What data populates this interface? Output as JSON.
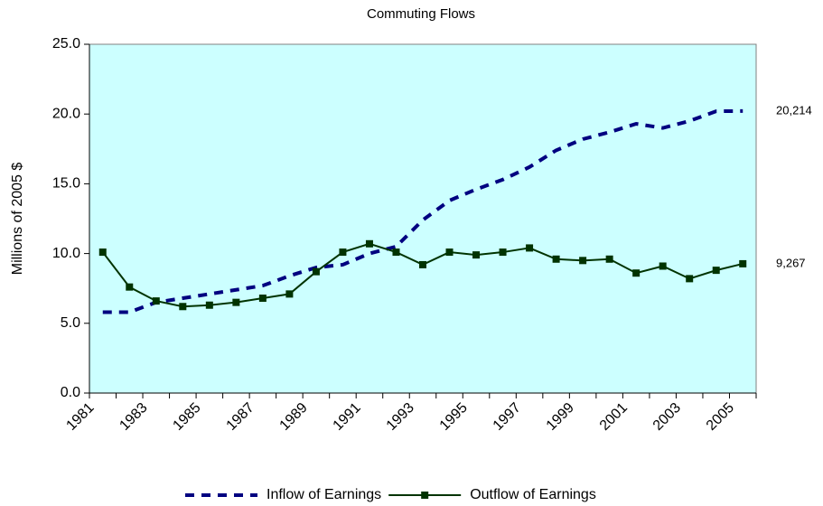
{
  "chart_data": {
    "type": "line",
    "title": "Commuting Flows",
    "ylabel": "Millions of 2005 $",
    "categories": [
      "1981",
      null,
      "1983",
      null,
      "1985",
      null,
      "1987",
      null,
      "1989",
      null,
      "1991",
      null,
      "1993",
      null,
      "1995",
      null,
      "1997",
      null,
      "1999",
      null,
      "2001",
      null,
      "2003",
      null,
      "2005"
    ],
    "series": [
      {
        "name": "Inflow of Earnings",
        "color": "#000080",
        "dashed": true,
        "marker": false,
        "values": [
          5.8,
          5.8,
          6.5,
          6.8,
          7.1,
          7.4,
          7.7,
          8.4,
          9.0,
          9.2,
          10.0,
          10.5,
          12.4,
          13.8,
          14.6,
          15.3,
          16.2,
          17.4,
          18.2,
          18.7,
          19.3,
          19.0,
          19.5,
          20.2,
          20.214
        ],
        "value_labels": [
          null,
          null,
          null,
          null,
          null,
          null,
          null,
          null,
          null,
          null,
          null,
          null,
          null,
          null,
          null,
          null,
          null,
          null,
          null,
          null,
          null,
          null,
          null,
          null,
          "20,214"
        ]
      },
      {
        "name": "Outflow of Earnings",
        "color": "#003300",
        "dashed": false,
        "marker": true,
        "values": [
          10.1,
          7.6,
          6.6,
          6.2,
          6.3,
          6.5,
          6.8,
          7.1,
          8.7,
          10.1,
          10.7,
          10.1,
          9.2,
          10.1,
          9.9,
          10.1,
          10.4,
          9.6,
          9.5,
          9.6,
          8.6,
          9.1,
          8.2,
          8.8,
          9.267
        ],
        "value_labels": [
          null,
          null,
          null,
          null,
          null,
          null,
          null,
          null,
          null,
          null,
          null,
          null,
          null,
          null,
          null,
          null,
          null,
          null,
          null,
          null,
          null,
          null,
          null,
          null,
          "9,267"
        ]
      }
    ],
    "ylim": [
      0,
      25
    ],
    "yticks": [
      {
        "value": 0,
        "label": "0.0"
      },
      {
        "value": 5,
        "label": "5.0"
      },
      {
        "value": 10,
        "label": "10.0"
      },
      {
        "value": 15,
        "label": "15.0"
      },
      {
        "value": 20,
        "label": "20.0"
      },
      {
        "value": 25,
        "label": "25.0"
      }
    ],
    "background": "#ccffff",
    "legend": "bottom"
  }
}
